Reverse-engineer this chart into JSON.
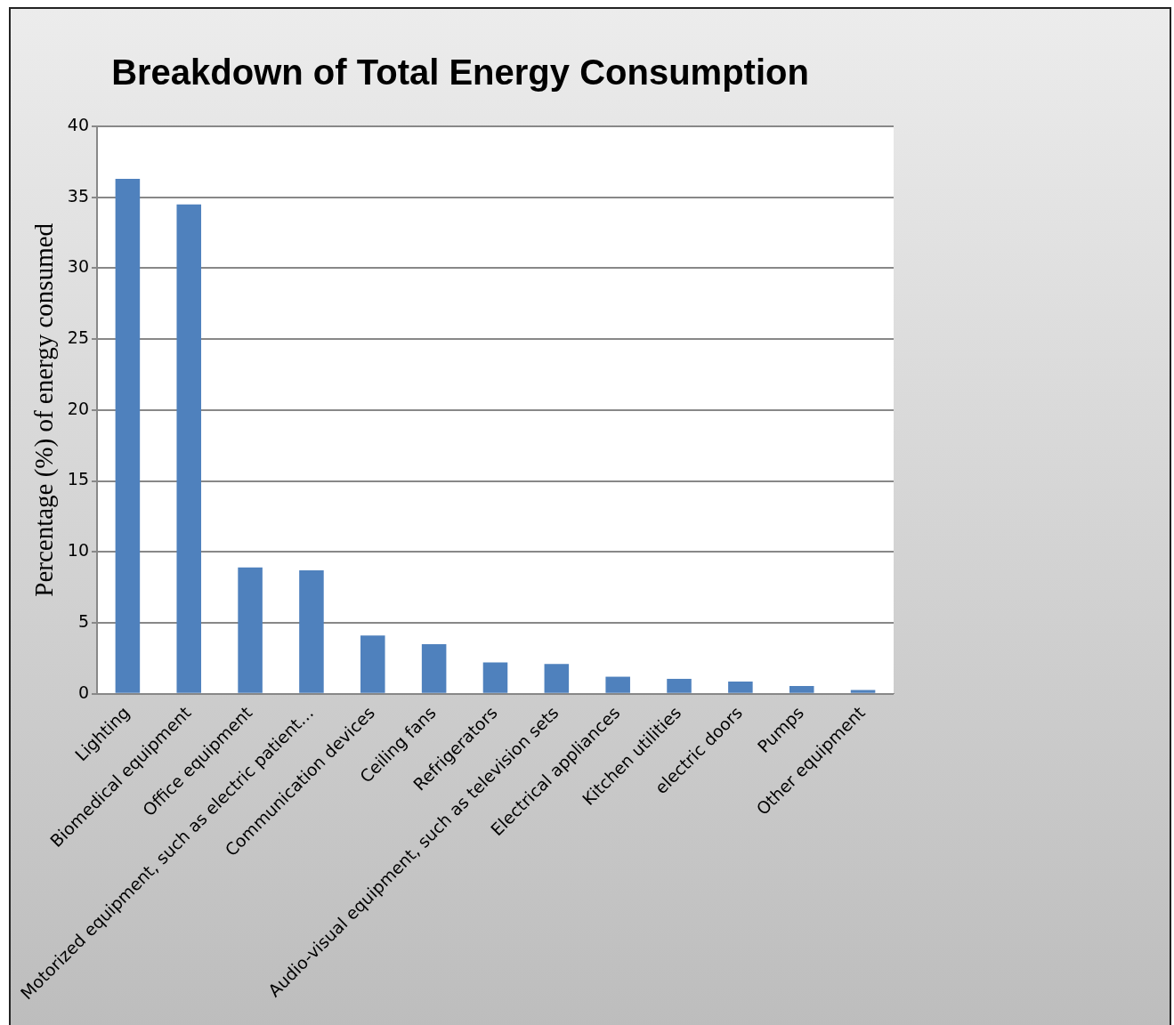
{
  "chart_data": {
    "type": "bar",
    "title": "Breakdown of Total Energy Consumption",
    "ylabel": "Percentage (%) of energy consumed",
    "categories": [
      "Lighting",
      "Biomedical equipment",
      "Office equipment",
      "Motorized equipment, such as electric patient…",
      "Communication devices",
      "Ceiling fans",
      "Refrigerators",
      "Audio-visual equipment, such as television sets",
      "Electrical appliances",
      "Kitchen utilities",
      "electric doors",
      "Pumps",
      "Other equipment"
    ],
    "values": [
      36.3,
      34.5,
      8.9,
      8.7,
      4.1,
      3.5,
      2.2,
      2.1,
      1.2,
      1.05,
      0.86,
      0.55,
      0.27
    ],
    "color": "#4f81bd",
    "ylim": [
      0,
      40
    ],
    "yticks": [
      0,
      5,
      10,
      15,
      20,
      25,
      30,
      35,
      40
    ],
    "grid": "y",
    "legend": false
  }
}
